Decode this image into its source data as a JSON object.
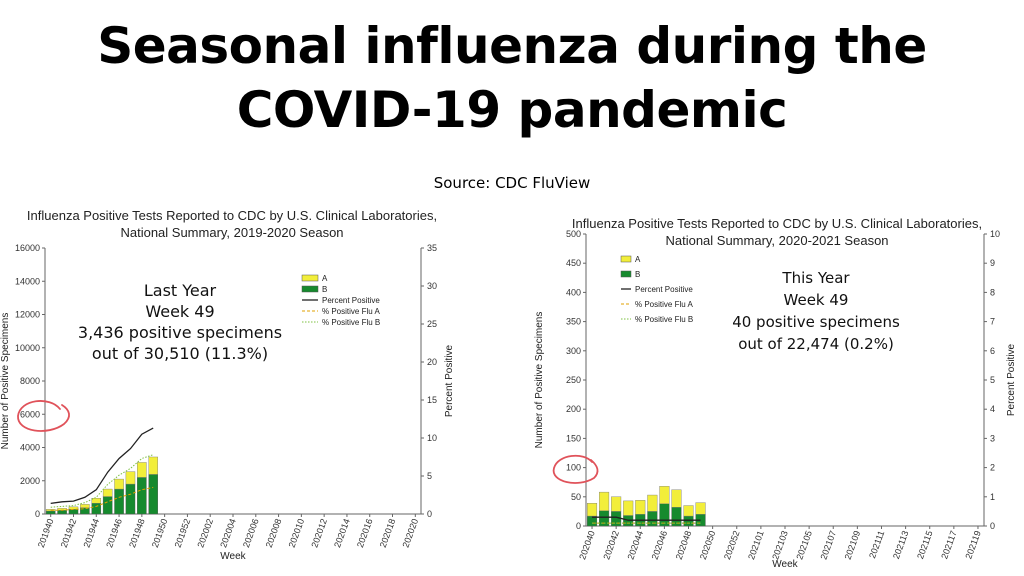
{
  "title_line1": "Seasonal influenza during the",
  "title_line2": "COVID-19 pandemic",
  "source": "Source: CDC FluView",
  "colors": {
    "flu_a": "#f2ee3a",
    "flu_b": "#168a2e",
    "percent_line": "#222222",
    "pct_a": "#e0a000",
    "pct_b": "#7cc040",
    "circle": "#e0525a"
  },
  "chart_data": [
    {
      "type": "bar",
      "title": "Influenza Positive Tests Reported to CDC by U.S. Clinical Laboratories,",
      "subtitle": "National Summary, 2019-2020 Season",
      "xlabel": "Week",
      "ylabel": "Number of Positive Specimens",
      "y2label": "Percent Positive",
      "ylim": [
        0,
        16000
      ],
      "y2lim": [
        0,
        35
      ],
      "yticks": [
        "0",
        "2000",
        "4000",
        "6000",
        "8000",
        "10000",
        "12000",
        "14000",
        "16000"
      ],
      "y2ticks": [
        "0",
        "5",
        "10",
        "15",
        "20",
        "25",
        "30",
        "35"
      ],
      "xticks": [
        "201940",
        "201942",
        "201944",
        "201946",
        "201948",
        "201950",
        "201952",
        "202002",
        "202004",
        "202006",
        "202008",
        "202010",
        "202012",
        "202014",
        "202016",
        "202018",
        "202020"
      ],
      "weeks": [
        "201940",
        "201941",
        "201942",
        "201943",
        "201944",
        "201945",
        "201946",
        "201947",
        "201948",
        "201949"
      ],
      "series": [
        {
          "name": "A",
          "values": [
            100,
            120,
            150,
            200,
            300,
            450,
            600,
            750,
            900,
            1050
          ]
        },
        {
          "name": "B",
          "values": [
            180,
            220,
            280,
            380,
            650,
            1050,
            1500,
            1800,
            2200,
            2380
          ]
        },
        {
          "name": "Percent Positive",
          "values": [
            1.4,
            1.6,
            1.7,
            2.2,
            3.2,
            5.5,
            7.3,
            8.6,
            10.5,
            11.3
          ]
        },
        {
          "name": "% Positive Flu A",
          "values": [
            0.5,
            0.5,
            0.6,
            0.7,
            1.0,
            1.6,
            2.2,
            2.6,
            3.2,
            3.5
          ]
        },
        {
          "name": "% Positive Flu B",
          "values": [
            0.9,
            1.0,
            1.1,
            1.5,
            2.2,
            3.9,
            5.1,
            6.0,
            7.3,
            7.8
          ]
        }
      ],
      "legend": [
        "A",
        "B",
        "Percent Positive",
        "% Positive Flu A",
        "% Positive Flu B"
      ],
      "annotation": [
        "Last Year",
        "Week 49",
        "3,436 positive specimens",
        "out of 30,510 (11.3%)"
      ]
    },
    {
      "type": "bar",
      "title": "Influenza Positive Tests Reported to CDC by U.S. Clinical Laboratories,",
      "subtitle": "National Summary, 2020-2021 Season",
      "xlabel": "Week",
      "ylabel": "Number of Positive Specimens",
      "y2label": "Percent Positive",
      "ylim": [
        0,
        500
      ],
      "y2lim": [
        0,
        10
      ],
      "yticks": [
        "0",
        "50",
        "100",
        "150",
        "200",
        "250",
        "300",
        "350",
        "400",
        "450",
        "500"
      ],
      "y2ticks": [
        "0",
        "1",
        "2",
        "3",
        "4",
        "5",
        "6",
        "7",
        "8",
        "9",
        "10"
      ],
      "xticks": [
        "202040",
        "202042",
        "202044",
        "202046",
        "202048",
        "202050",
        "202052",
        "202101",
        "202103",
        "202105",
        "202107",
        "202109",
        "202111",
        "202113",
        "202115",
        "202117",
        "202119"
      ],
      "weeks": [
        "202040",
        "202041",
        "202042",
        "202043",
        "202044",
        "202045",
        "202046",
        "202047",
        "202048",
        "202049"
      ],
      "series": [
        {
          "name": "A",
          "values": [
            22,
            32,
            25,
            25,
            24,
            28,
            30,
            30,
            18,
            20
          ]
        },
        {
          "name": "B",
          "values": [
            17,
            26,
            25,
            18,
            20,
            25,
            38,
            32,
            17,
            20
          ]
        },
        {
          "name": "Percent Positive",
          "values": [
            0.3,
            0.3,
            0.3,
            0.2,
            0.2,
            0.2,
            0.2,
            0.2,
            0.2,
            0.2
          ]
        },
        {
          "name": "% Positive Flu A",
          "values": [
            0.1,
            0.1,
            0.1,
            0.1,
            0.1,
            0.1,
            0.1,
            0.1,
            0.1,
            0.1
          ]
        },
        {
          "name": "% Positive Flu B",
          "values": [
            0.1,
            0.1,
            0.1,
            0.1,
            0.1,
            0.1,
            0.1,
            0.1,
            0.1,
            0.1
          ]
        }
      ],
      "legend": [
        "A",
        "B",
        "Percent Positive",
        "% Positive Flu A",
        "% Positive Flu B"
      ],
      "annotation": [
        "This Year",
        "Week 49",
        "40 positive specimens",
        "out of 22,474 (0.2%)"
      ]
    }
  ]
}
